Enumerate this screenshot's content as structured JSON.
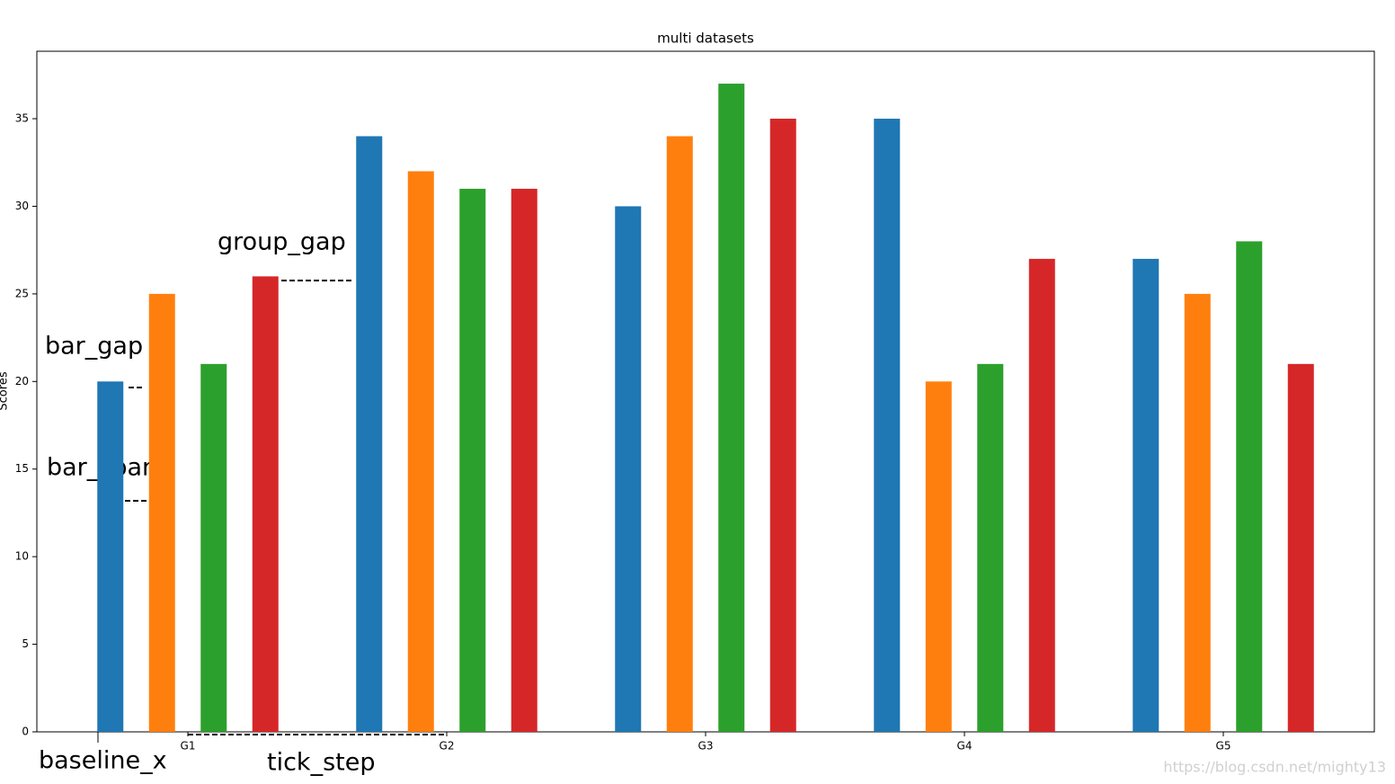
{
  "chart_data": {
    "type": "bar",
    "title": "multi datasets",
    "y_label": "Scores",
    "categories": [
      "G1",
      "G2",
      "G3",
      "G4",
      "G5"
    ],
    "series": [
      {
        "color": "#1f77b4",
        "values": [
          20,
          34,
          30,
          35,
          27
        ]
      },
      {
        "color": "#ff7f0e",
        "values": [
          25,
          32,
          34,
          20,
          25
        ]
      },
      {
        "color": "#2ca02c",
        "values": [
          21,
          31,
          37,
          21,
          28
        ]
      },
      {
        "color": "#d62728",
        "values": [
          26,
          31,
          35,
          27,
          21
        ]
      }
    ],
    "ylim": [
      0,
      38.85
    ],
    "yticks": [
      0,
      5,
      10,
      15,
      20,
      25,
      30,
      35
    ],
    "grid": false,
    "annotations": [
      "bar_gap",
      "bar_span",
      "group_gap",
      "tick_step",
      "baseline_x"
    ],
    "watermark": "https://blog.csdn.net/mighty13"
  }
}
